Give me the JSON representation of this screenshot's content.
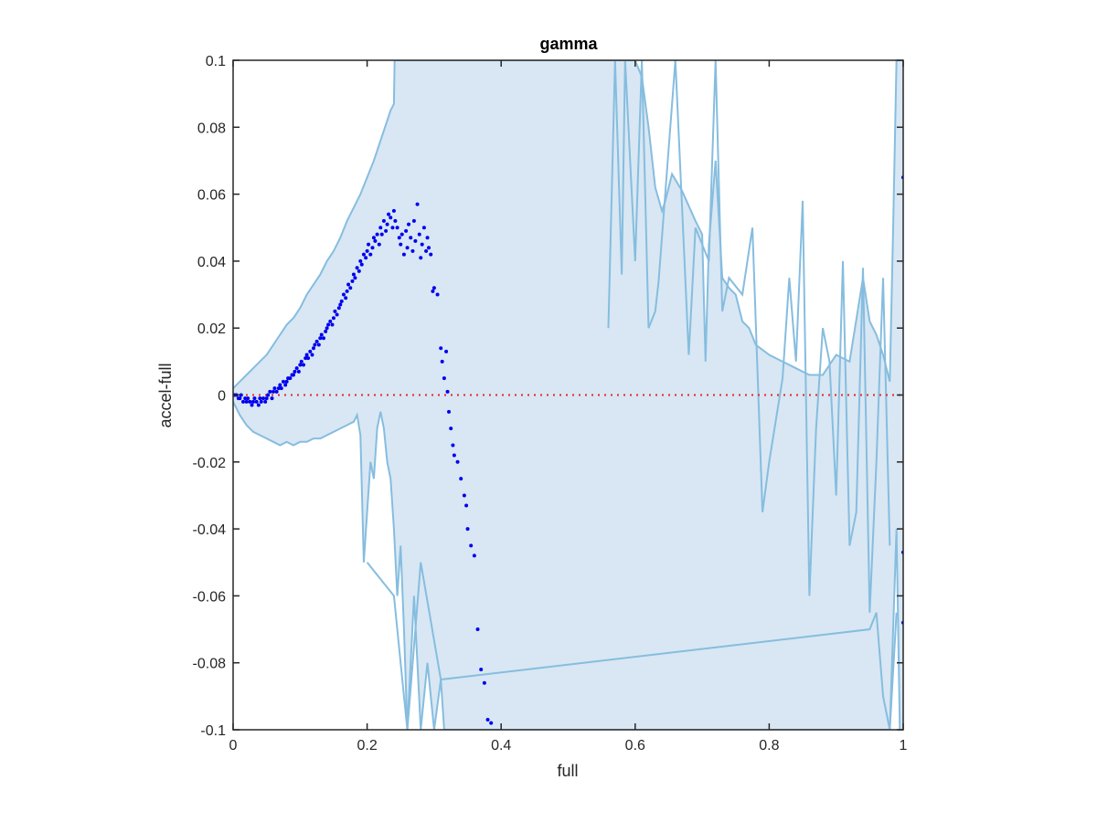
{
  "chart_data": {
    "type": "scatter",
    "title": "gamma",
    "xlabel": "full",
    "ylabel": "accel-full",
    "xlim": [
      0,
      1
    ],
    "ylim": [
      -0.1,
      0.1
    ],
    "xticks": [
      "0",
      "0.2",
      "0.4",
      "0.6",
      "0.8",
      "1"
    ],
    "yticks": [
      "-0.1",
      "-0.08",
      "-0.06",
      "-0.04",
      "-0.02",
      "0",
      "0.02",
      "0.04",
      "0.06",
      "0.08",
      "0.1"
    ],
    "grid": false,
    "legend": "none",
    "colors": {
      "band_fill": "#d8e7f3",
      "band_edge": "#86bddf",
      "points": "#0000ee",
      "zero_line": "#ee2222",
      "axis": "#262626"
    },
    "reference_line": {
      "y": 0,
      "style": "dotted",
      "color": "#ee2222"
    },
    "band": {
      "upper": [
        [
          0,
          0.002
        ],
        [
          0.01,
          0.004
        ],
        [
          0.02,
          0.006
        ],
        [
          0.03,
          0.008
        ],
        [
          0.04,
          0.01
        ],
        [
          0.05,
          0.012
        ],
        [
          0.06,
          0.015
        ],
        [
          0.07,
          0.018
        ],
        [
          0.08,
          0.021
        ],
        [
          0.09,
          0.023
        ],
        [
          0.1,
          0.026
        ],
        [
          0.11,
          0.03
        ],
        [
          0.12,
          0.033
        ],
        [
          0.13,
          0.036
        ],
        [
          0.14,
          0.04
        ],
        [
          0.15,
          0.043
        ],
        [
          0.16,
          0.047
        ],
        [
          0.17,
          0.052
        ],
        [
          0.18,
          0.056
        ],
        [
          0.19,
          0.06
        ],
        [
          0.2,
          0.065
        ],
        [
          0.21,
          0.07
        ],
        [
          0.22,
          0.076
        ],
        [
          0.23,
          0.082
        ],
        [
          0.235,
          0.085
        ],
        [
          0.24,
          0.087
        ],
        [
          0.241,
          0.1
        ],
        [
          0.25,
          0.1
        ],
        [
          0.6,
          0.1
        ],
        [
          0.61,
          0.095
        ],
        [
          0.62,
          0.08
        ],
        [
          0.63,
          0.062
        ],
        [
          0.64,
          0.055
        ],
        [
          0.645,
          0.058
        ],
        [
          0.655,
          0.066
        ],
        [
          0.67,
          0.061
        ],
        [
          0.69,
          0.052
        ],
        [
          0.7,
          0.048
        ],
        [
          0.705,
          0.01
        ],
        [
          0.71,
          0.045
        ],
        [
          0.72,
          0.07
        ],
        [
          0.73,
          0.035
        ],
        [
          0.74,
          0.032
        ],
        [
          0.75,
          0.03
        ],
        [
          0.76,
          0.022
        ],
        [
          0.77,
          0.02
        ],
        [
          0.78,
          0.015
        ],
        [
          0.8,
          0.012
        ],
        [
          0.82,
          0.01
        ],
        [
          0.84,
          0.008
        ],
        [
          0.86,
          0.006
        ],
        [
          0.88,
          0.006
        ],
        [
          0.9,
          0.012
        ],
        [
          0.92,
          0.01
        ],
        [
          0.94,
          0.035
        ],
        [
          0.95,
          0.022
        ],
        [
          0.96,
          0.018
        ],
        [
          0.97,
          0.012
        ],
        [
          0.98,
          0.004
        ],
        [
          0.985,
          0.05
        ],
        [
          0.99,
          0.1
        ],
        [
          1.0,
          0.1
        ]
      ],
      "lower": [
        [
          0,
          -0.002
        ],
        [
          0.01,
          -0.006
        ],
        [
          0.02,
          -0.009
        ],
        [
          0.03,
          -0.011
        ],
        [
          0.04,
          -0.012
        ],
        [
          0.05,
          -0.013
        ],
        [
          0.06,
          -0.014
        ],
        [
          0.07,
          -0.015
        ],
        [
          0.08,
          -0.014
        ],
        [
          0.09,
          -0.015
        ],
        [
          0.1,
          -0.014
        ],
        [
          0.11,
          -0.014
        ],
        [
          0.12,
          -0.013
        ],
        [
          0.13,
          -0.013
        ],
        [
          0.14,
          -0.012
        ],
        [
          0.15,
          -0.011
        ],
        [
          0.16,
          -0.01
        ],
        [
          0.17,
          -0.009
        ],
        [
          0.18,
          -0.008
        ],
        [
          0.185,
          -0.006
        ],
        [
          0.19,
          -0.012
        ],
        [
          0.195,
          -0.05
        ],
        [
          0.2,
          -0.035
        ],
        [
          0.205,
          -0.02
        ],
        [
          0.21,
          -0.025
        ],
        [
          0.215,
          -0.01
        ],
        [
          0.22,
          -0.005
        ],
        [
          0.225,
          -0.01
        ],
        [
          0.23,
          -0.02
        ],
        [
          0.235,
          -0.025
        ],
        [
          0.24,
          -0.04
        ],
        [
          0.245,
          -0.06
        ],
        [
          0.25,
          -0.045
        ],
        [
          0.255,
          -0.07
        ],
        [
          0.26,
          -0.1
        ],
        [
          0.27,
          -0.06
        ],
        [
          0.28,
          -0.1
        ],
        [
          0.29,
          -0.08
        ],
        [
          0.3,
          -0.1
        ],
        [
          0.31,
          -0.085
        ],
        [
          0.315,
          -0.1
        ],
        [
          0.6,
          -0.1
        ],
        [
          0.98,
          -0.1
        ],
        [
          0.99,
          -0.04
        ],
        [
          0.995,
          -0.1
        ],
        [
          1.0,
          -0.1
        ]
      ],
      "upper_spikes": [
        [
          0.56,
          0.02
        ],
        [
          0.57,
          0.1
        ],
        [
          0.58,
          0.036
        ],
        [
          0.585,
          0.1
        ],
        [
          0.6,
          0.04
        ],
        [
          0.61,
          0.1
        ],
        [
          0.62,
          0.02
        ],
        [
          0.63,
          0.025
        ],
        [
          0.635,
          0.034
        ],
        [
          0.66,
          0.1
        ],
        [
          0.68,
          0.012
        ],
        [
          0.69,
          0.05
        ],
        [
          0.71,
          0.04
        ],
        [
          0.72,
          0.1
        ],
        [
          0.73,
          0.025
        ],
        [
          0.74,
          0.035
        ],
        [
          0.76,
          0.03
        ],
        [
          0.775,
          0.05
        ],
        [
          0.79,
          -0.035
        ],
        [
          0.8,
          -0.02
        ],
        [
          0.82,
          0.005
        ],
        [
          0.83,
          0.035
        ],
        [
          0.84,
          0.01
        ],
        [
          0.85,
          0.058
        ],
        [
          0.86,
          -0.06
        ],
        [
          0.87,
          -0.01
        ],
        [
          0.88,
          0.02
        ],
        [
          0.89,
          0.01
        ],
        [
          0.9,
          -0.03
        ],
        [
          0.91,
          0.04
        ],
        [
          0.92,
          -0.045
        ],
        [
          0.93,
          -0.035
        ],
        [
          0.94,
          0.038
        ],
        [
          0.95,
          -0.065
        ],
        [
          0.96,
          -0.02
        ],
        [
          0.97,
          0.035
        ],
        [
          0.98,
          -0.045
        ]
      ],
      "lower_spikes": [
        [
          0.2,
          -0.05
        ],
        [
          0.24,
          -0.06
        ],
        [
          0.26,
          -0.1
        ],
        [
          0.28,
          -0.05
        ],
        [
          0.31,
          -0.085
        ],
        [
          0.95,
          -0.07
        ],
        [
          0.96,
          -0.065
        ],
        [
          0.97,
          -0.09
        ],
        [
          0.98,
          -0.1
        ],
        [
          0.99,
          -0.065
        ]
      ]
    },
    "series": [
      {
        "values_x": [
          0.002,
          0.005,
          0.008,
          0.01,
          0.012,
          0.015,
          0.018,
          0.02,
          0.022,
          0.025,
          0.028,
          0.03,
          0.032,
          0.035,
          0.038,
          0.04,
          0.042,
          0.045,
          0.048,
          0.05,
          0.052,
          0.055,
          0.058,
          0.06,
          0.062,
          0.065,
          0.068,
          0.07,
          0.072,
          0.075,
          0.078,
          0.08,
          0.082,
          0.085,
          0.088,
          0.09,
          0.092,
          0.095,
          0.098,
          0.1,
          0.102,
          0.105,
          0.108,
          0.11,
          0.112,
          0.115,
          0.118,
          0.12,
          0.122,
          0.125,
          0.128,
          0.13,
          0.132,
          0.135,
          0.138,
          0.14,
          0.142,
          0.145,
          0.148,
          0.15,
          0.152,
          0.155,
          0.158,
          0.16,
          0.162,
          0.165,
          0.168,
          0.17,
          0.172,
          0.175,
          0.178,
          0.18,
          0.182,
          0.185,
          0.188,
          0.19,
          0.192,
          0.195,
          0.198,
          0.2,
          0.202,
          0.205,
          0.208,
          0.21,
          0.212,
          0.215,
          0.218,
          0.22,
          0.222,
          0.225,
          0.228,
          0.23,
          0.232,
          0.235,
          0.238,
          0.24,
          0.242,
          0.245,
          0.248,
          0.25,
          0.252,
          0.255,
          0.258,
          0.26,
          0.262,
          0.265,
          0.268,
          0.27,
          0.272,
          0.275,
          0.278,
          0.28,
          0.282,
          0.285,
          0.288,
          0.29,
          0.292,
          0.295,
          0.298,
          0.3,
          0.305,
          0.31,
          0.312,
          0.315,
          0.318,
          0.32,
          0.322,
          0.325,
          0.328,
          0.33,
          0.335,
          0.34,
          0.345,
          0.348,
          0.35,
          0.355,
          0.36,
          0.365,
          0.37,
          0.375,
          0.38,
          0.385,
          1.0,
          1.0,
          1.0
        ],
        "values_y": [
          0.0,
          0.0,
          -0.001,
          -0.001,
          0.0,
          -0.002,
          -0.001,
          -0.002,
          -0.001,
          -0.002,
          -0.003,
          -0.002,
          -0.001,
          -0.002,
          -0.003,
          -0.001,
          -0.002,
          -0.001,
          -0.002,
          -0.001,
          0.0,
          0.001,
          -0.001,
          0.001,
          0.002,
          0.001,
          0.002,
          0.003,
          0.002,
          0.004,
          0.003,
          0.004,
          0.005,
          0.005,
          0.006,
          0.006,
          0.007,
          0.008,
          0.007,
          0.009,
          0.01,
          0.009,
          0.011,
          0.012,
          0.011,
          0.013,
          0.012,
          0.014,
          0.015,
          0.016,
          0.015,
          0.017,
          0.018,
          0.017,
          0.019,
          0.02,
          0.021,
          0.022,
          0.021,
          0.023,
          0.025,
          0.024,
          0.026,
          0.027,
          0.028,
          0.03,
          0.029,
          0.031,
          0.033,
          0.032,
          0.034,
          0.036,
          0.035,
          0.038,
          0.037,
          0.04,
          0.039,
          0.042,
          0.041,
          0.043,
          0.045,
          0.042,
          0.044,
          0.047,
          0.046,
          0.048,
          0.045,
          0.05,
          0.048,
          0.052,
          0.049,
          0.051,
          0.054,
          0.053,
          0.05,
          0.055,
          0.052,
          0.05,
          0.047,
          0.045,
          0.048,
          0.042,
          0.049,
          0.044,
          0.051,
          0.047,
          0.043,
          0.052,
          0.046,
          0.057,
          0.048,
          0.041,
          0.045,
          0.05,
          0.043,
          0.047,
          0.044,
          0.042,
          0.031,
          0.032,
          0.03,
          0.014,
          0.01,
          0.005,
          0.013,
          0.001,
          -0.005,
          -0.01,
          -0.015,
          -0.018,
          -0.02,
          -0.025,
          -0.03,
          -0.033,
          -0.04,
          -0.045,
          -0.048,
          -0.07,
          -0.082,
          -0.086,
          -0.097,
          -0.098,
          0.065,
          -0.047,
          -0.068
        ]
      }
    ]
  }
}
